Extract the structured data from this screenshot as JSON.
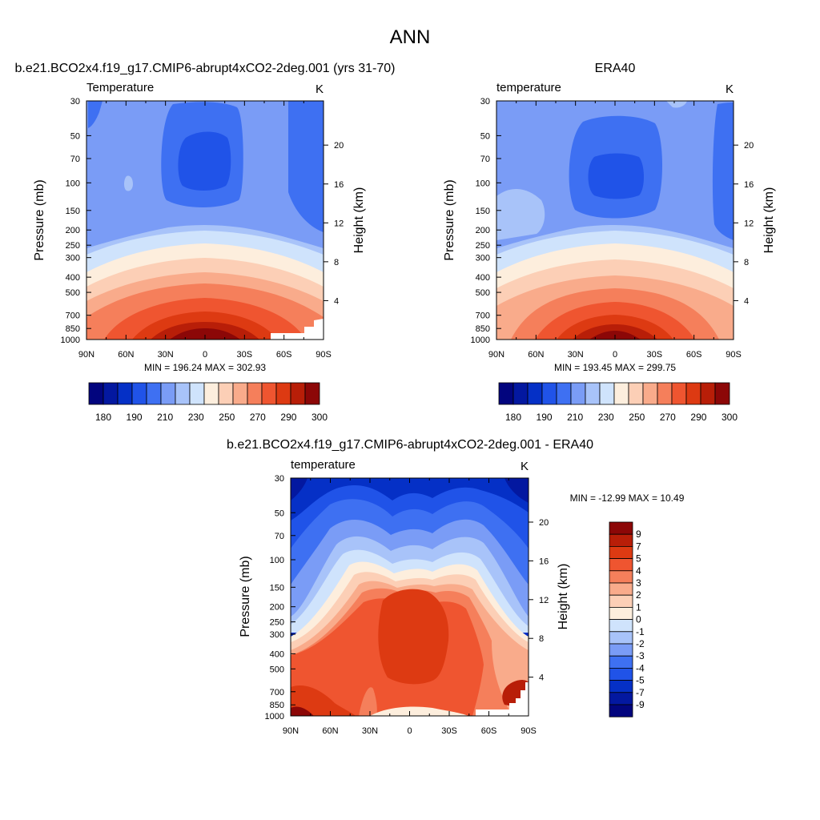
{
  "figure": {
    "title": "ANN"
  },
  "colors": {
    "abs_levels": [
      "#02057e",
      "#0318a0",
      "#0530c6",
      "#2053e8",
      "#3e70f2",
      "#7a9cf6",
      "#a8c3f9",
      "#cfe3fc",
      "#fdeedd",
      "#fccfb6",
      "#f9ab8b",
      "#f57f5b",
      "#ef5530",
      "#dd3a12",
      "#b81e08",
      "#8c0707"
    ],
    "diff_levels": [
      "#02057e",
      "#0318a0",
      "#0530c6",
      "#2053e8",
      "#3e70f2",
      "#7a9cf6",
      "#a8c3f9",
      "#cfe3fc",
      "#fdeedd",
      "#fccfb6",
      "#f9ab8b",
      "#f57f5b",
      "#ef5530",
      "#dd3a12",
      "#b81e08",
      "#8c0707"
    ]
  },
  "chart_data": [
    {
      "type": "heatmap",
      "panel_title": "b.e21.BCO2x4.f19_g17.CMIP6-abrupt4xCO2-2deg.001 (yrs 31-70)",
      "variable_label": "Temperature",
      "units": "K",
      "ylabel_left": "Pressure (mb)",
      "ylabel_right": "Height (km)",
      "x_ticks": [
        "90N",
        "60N",
        "30N",
        "0",
        "30S",
        "60S",
        "90S"
      ],
      "p_ticks": [
        "30",
        "50",
        "70",
        "100",
        "150",
        "200",
        "250",
        "300",
        "400",
        "500",
        "700",
        "850",
        "1000"
      ],
      "z_ticks": [
        "20",
        "16",
        "12",
        "8",
        "4"
      ],
      "stats": "MIN = 196.24  MAX = 302.93",
      "colorbar_labels": [
        "180",
        "190",
        "210",
        "230",
        "250",
        "270",
        "290",
        "300"
      ],
      "grid": false
    },
    {
      "type": "heatmap",
      "panel_title": "ERA40",
      "variable_label": "temperature",
      "units": "K",
      "ylabel_left": "Pressure (mb)",
      "ylabel_right": "Height (km)",
      "x_ticks": [
        "90N",
        "60N",
        "30N",
        "0",
        "30S",
        "60S",
        "90S"
      ],
      "p_ticks": [
        "30",
        "50",
        "70",
        "100",
        "150",
        "200",
        "250",
        "300",
        "400",
        "500",
        "700",
        "850",
        "1000"
      ],
      "z_ticks": [
        "20",
        "16",
        "12",
        "8",
        "4"
      ],
      "stats": "MIN = 193.45  MAX = 299.75",
      "colorbar_labels": [
        "180",
        "190",
        "210",
        "230",
        "250",
        "270",
        "290",
        "300"
      ],
      "grid": false
    },
    {
      "type": "heatmap",
      "panel_title": "b.e21.BCO2x4.f19_g17.CMIP6-abrupt4xCO2-2deg.001 - ERA40",
      "variable_label": "temperature",
      "units": "K",
      "ylabel_left": "Pressure (mb)",
      "ylabel_right": "Height (km)",
      "x_ticks": [
        "90N",
        "60N",
        "30N",
        "0",
        "30S",
        "60S",
        "90S"
      ],
      "p_ticks": [
        "30",
        "50",
        "70",
        "100",
        "150",
        "200",
        "250",
        "300",
        "400",
        "500",
        "700",
        "850",
        "1000"
      ],
      "z_ticks": [
        "20",
        "16",
        "12",
        "8",
        "4"
      ],
      "stats": "MIN = -12.99  MAX =  10.49",
      "colorbar_labels": [
        "9",
        "7",
        "5",
        "4",
        "3",
        "2",
        "1",
        "0",
        "-1",
        "-2",
        "-3",
        "-4",
        "-5",
        "-7",
        "-9"
      ],
      "grid": false
    }
  ]
}
